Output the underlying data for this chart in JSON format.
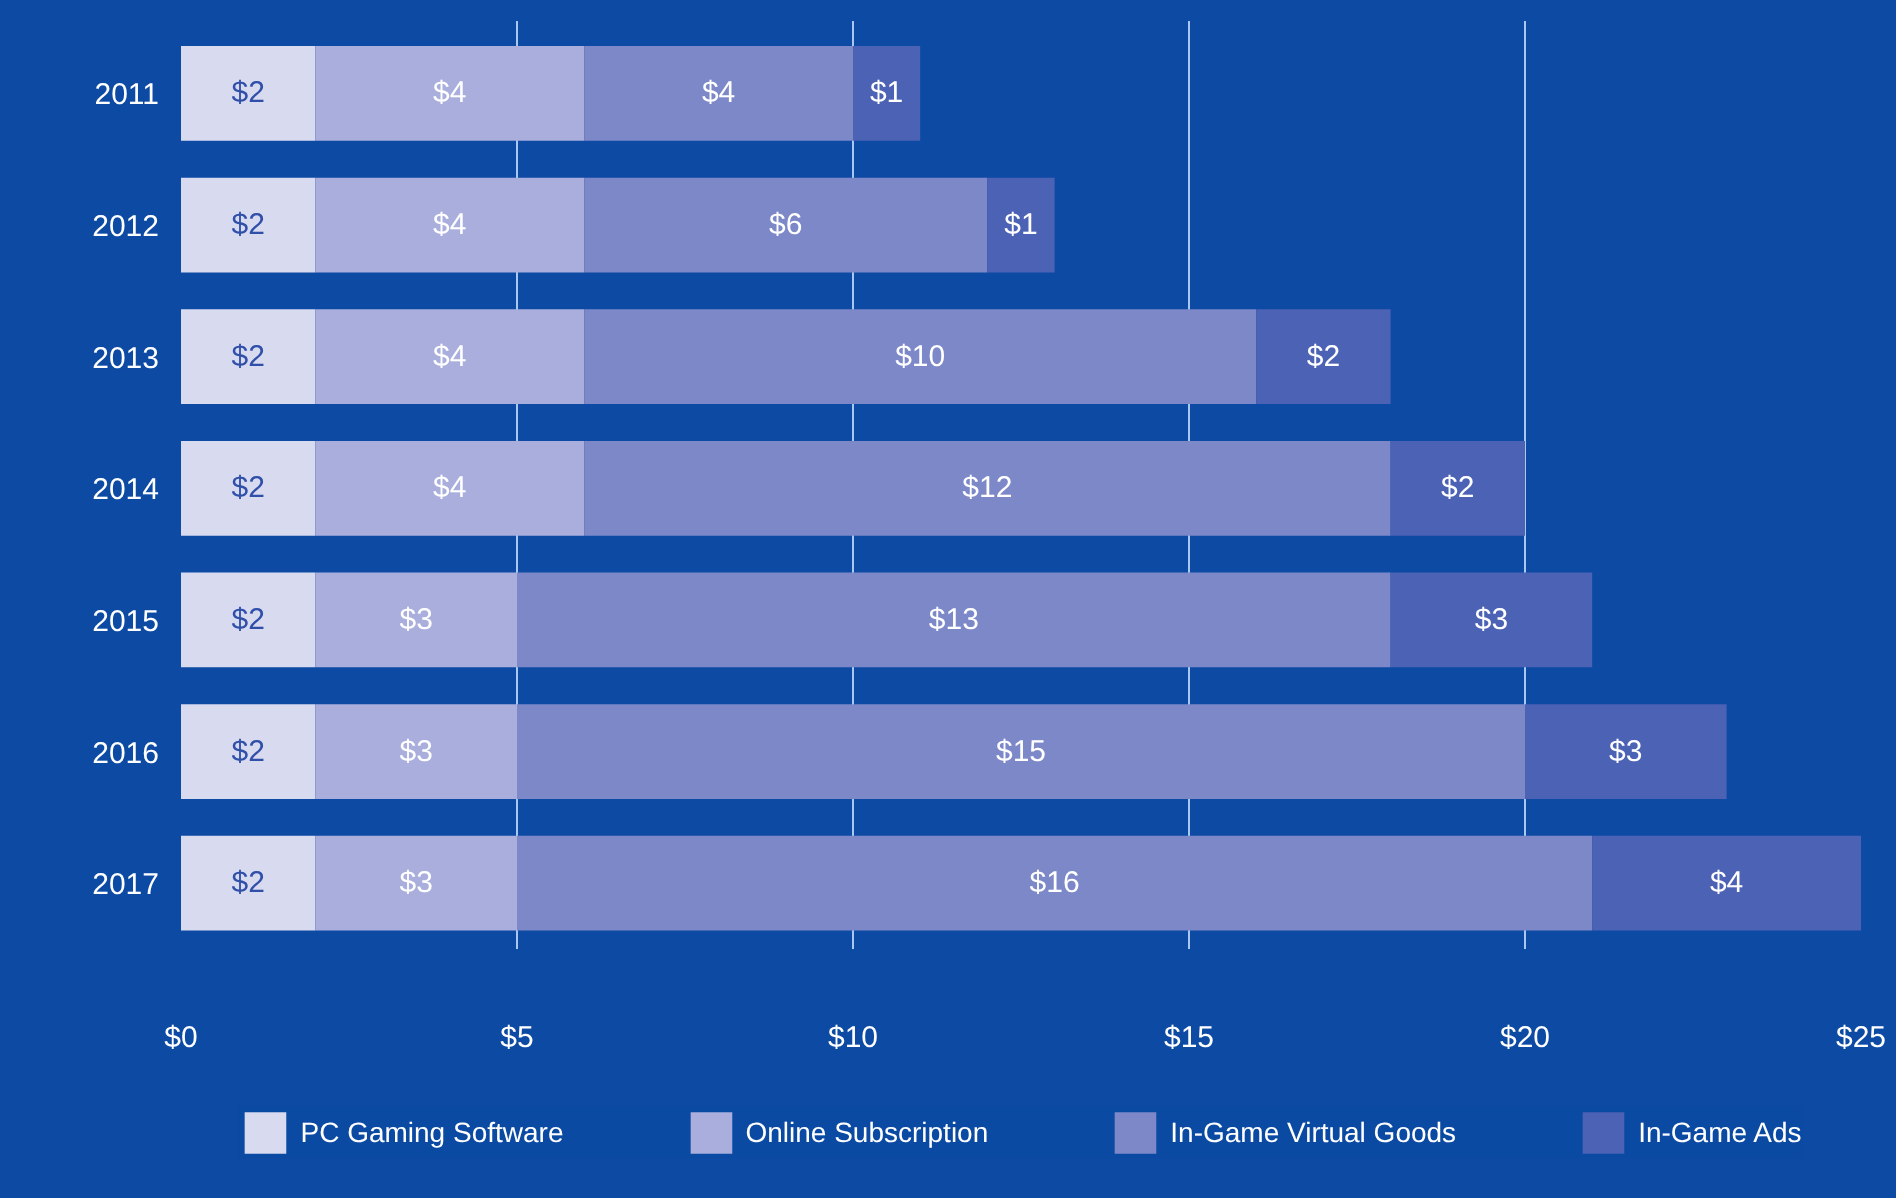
{
  "chart_data": {
    "type": "bar",
    "orientation": "horizontal",
    "stacked": true,
    "categories": [
      "2011",
      "2012",
      "2013",
      "2014",
      "2015",
      "2016",
      "2017"
    ],
    "series": [
      {
        "name": "PC Gaming Software",
        "color": "#d8daf0",
        "values": [
          2,
          2,
          2,
          2,
          2,
          2,
          2
        ],
        "value_labels": [
          "$2",
          "$2",
          "$2",
          "$2",
          "$2",
          "$2",
          "$2"
        ]
      },
      {
        "name": "Online Subscription",
        "color": "#a9aedd",
        "values": [
          4,
          4,
          4,
          4,
          3,
          3,
          3
        ],
        "value_labels": [
          "$4",
          "$4",
          "$4",
          "$4",
          "$3",
          "$3",
          "$3"
        ]
      },
      {
        "name": "In-Game Virtual Goods",
        "color": "#7d88c8",
        "values": [
          4,
          6,
          10,
          12,
          13,
          15,
          16
        ],
        "value_labels": [
          "$4",
          "$6",
          "$10",
          "$12",
          "$13",
          "$15",
          "$16"
        ]
      },
      {
        "name": "In-Game Ads",
        "color": "#4c62b5",
        "values": [
          1,
          1,
          2,
          2,
          3,
          3,
          4
        ],
        "value_labels": [
          "$1",
          "$1",
          "$2",
          "$2",
          "$3",
          "$3",
          "$4"
        ]
      }
    ],
    "xlim": [
      0,
      25
    ],
    "xticks": [
      {
        "value": 0,
        "label": "$0"
      },
      {
        "value": 5,
        "label": "$5"
      },
      {
        "value": 10,
        "label": "$10"
      },
      {
        "value": 15,
        "label": "$15"
      },
      {
        "value": 20,
        "label": "$20"
      },
      {
        "value": 25,
        "label": "$25"
      }
    ],
    "grid": "x",
    "legend": "bottom"
  }
}
